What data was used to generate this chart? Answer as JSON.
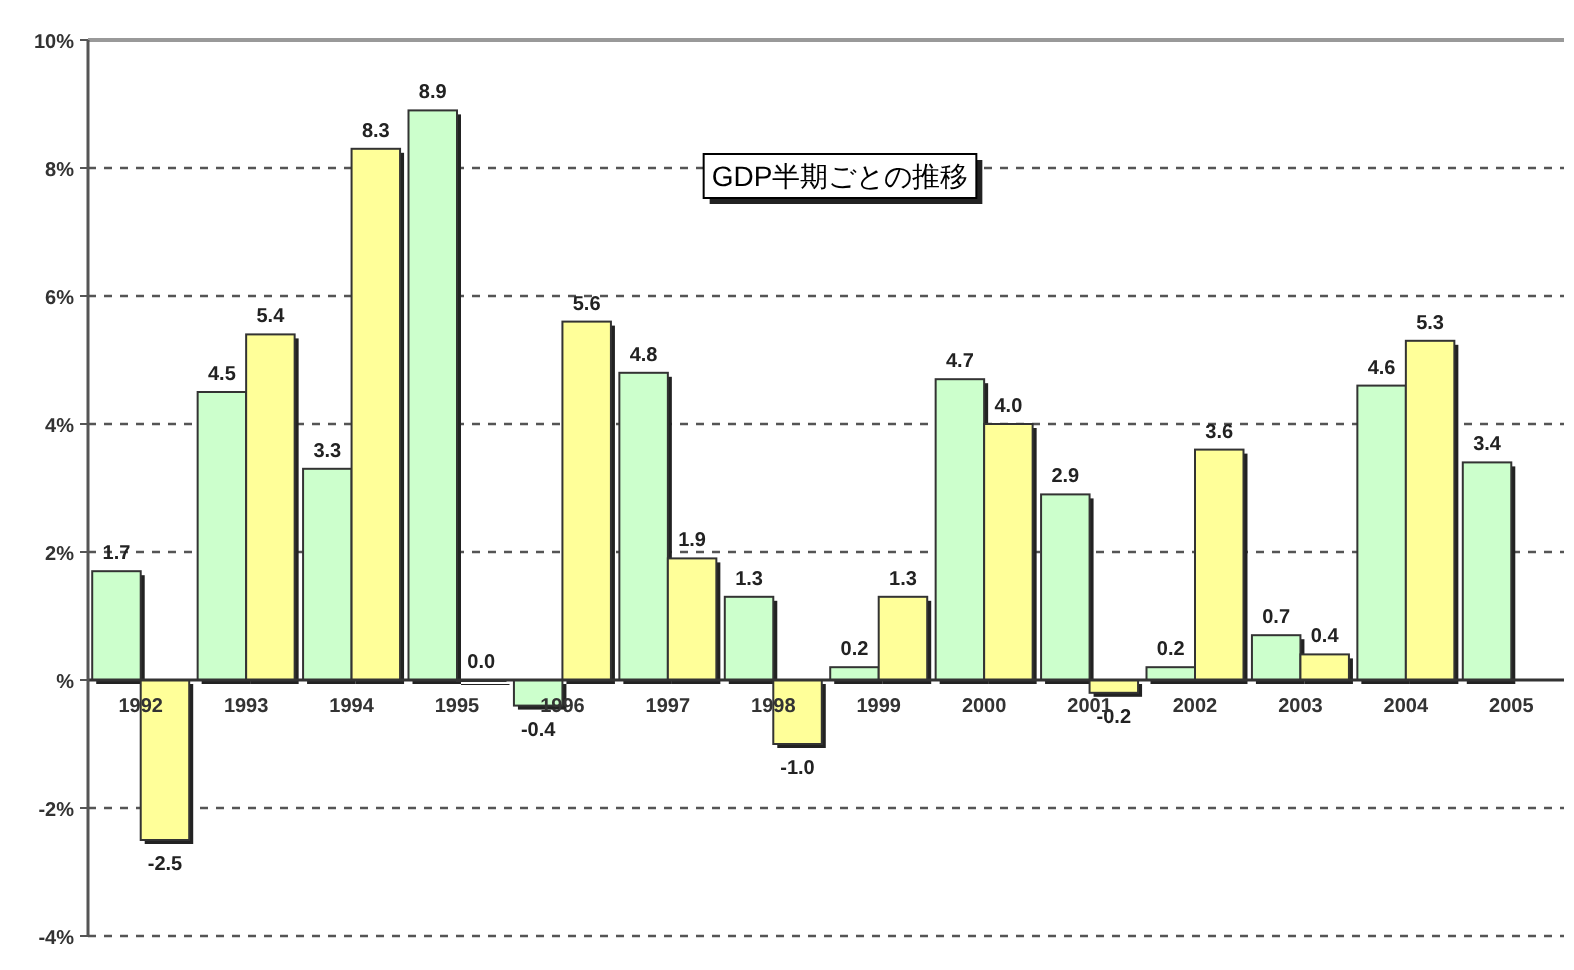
{
  "chart_data": {
    "type": "bar",
    "title": "GDP半期ごとの推移",
    "categories": [
      "1992",
      "1993",
      "1994",
      "1995",
      "1996",
      "1997",
      "1998",
      "1999",
      "2000",
      "2001",
      "2002",
      "2003",
      "2004",
      "2005"
    ],
    "series": [
      {
        "color": "#ccffcc",
        "values": [
          1.7,
          4.5,
          3.3,
          8.9,
          -0.4,
          4.8,
          1.3,
          0.2,
          4.7,
          2.9,
          0.2,
          0.7,
          4.6,
          3.4
        ],
        "value_labels": [
          "1.7",
          "4.5",
          "3.3",
          "8.9",
          "-0.4",
          "4.8",
          "1.3",
          "0.2",
          "4.7",
          "2.9",
          "0.2",
          "0.7",
          "4.6",
          "3.4"
        ]
      },
      {
        "color": "#ffff99",
        "values": [
          -2.5,
          5.4,
          8.3,
          0.0,
          5.6,
          1.9,
          -1.0,
          1.3,
          4.0,
          -0.2,
          3.6,
          0.4,
          5.3,
          null
        ],
        "value_labels": [
          "-2.5",
          "5.4",
          "8.3",
          "0.0",
          "5.6",
          "1.9",
          "-1.0",
          "1.3",
          "4.0",
          "-0.2",
          "3.6",
          "0.4",
          "5.3",
          null
        ]
      }
    ],
    "ylim": [
      -4,
      10
    ],
    "yticks": [
      {
        "value": -4,
        "label": "-4%"
      },
      {
        "value": -2,
        "label": "-2%"
      },
      {
        "value": 0,
        "label": "%"
      },
      {
        "value": 2,
        "label": "2%"
      },
      {
        "value": 4,
        "label": "4%"
      },
      {
        "value": 6,
        "label": "6%"
      },
      {
        "value": 8,
        "label": "8%"
      },
      {
        "value": 10,
        "label": "10%"
      }
    ],
    "grid": "y"
  }
}
